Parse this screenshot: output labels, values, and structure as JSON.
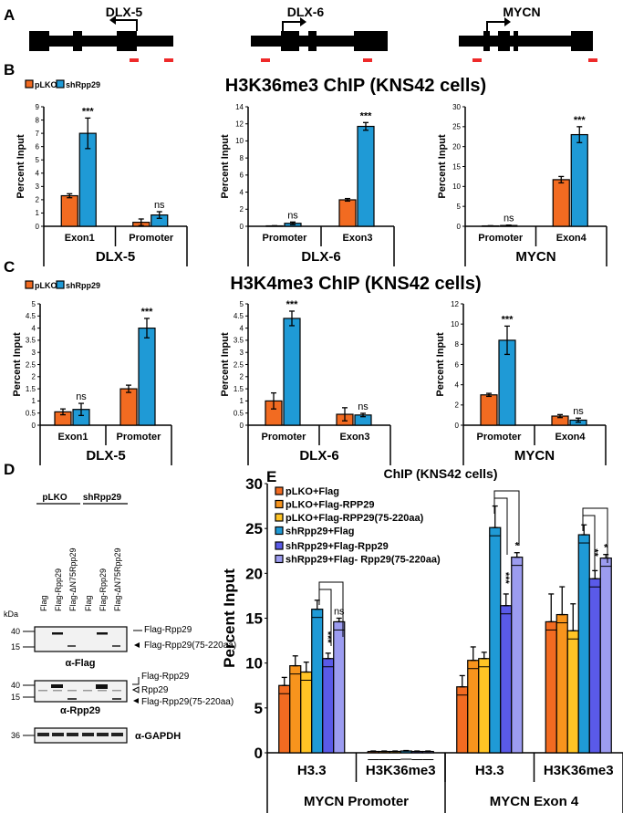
{
  "panel_labels": [
    "A",
    "B",
    "C",
    "D",
    "E"
  ],
  "genes": [
    {
      "name": "DLX-5"
    },
    {
      "name": "DLX-6"
    },
    {
      "name": "MYCN"
    }
  ],
  "panelB": {
    "title": "H3K36me3 ChIP (KNS42 cells)"
  },
  "panelC": {
    "title": "H3K4me3 ChIP (KNS42 cells)"
  },
  "legendBC": [
    {
      "name": "pLKO",
      "color": "#F26B21"
    },
    {
      "name": "shRpp29",
      "color": "#1F9AD6"
    }
  ],
  "blot": {
    "groups": [
      "pLKO",
      "shRpp29"
    ],
    "lanes": [
      "Flag",
      "Flag-Rpp29",
      "Flag-ΔN75Rpp29",
      "Flag",
      "Flag-Rpp29",
      "Flag-ΔN75Rpp29"
    ],
    "kda": "kDa",
    "flag": {
      "markers": [
        "40",
        "15"
      ],
      "caption": "α-Flag",
      "bands": [
        "Flag-Rpp29",
        "Flag-Rpp29(75-220aa)"
      ]
    },
    "rpp29": {
      "markers": [
        "40",
        "15"
      ],
      "caption": "α-Rpp29",
      "bands": [
        "Flag-Rpp29",
        "Rpp29",
        "Flag-Rpp29(75-220aa)"
      ]
    },
    "gapdh": {
      "markers": [
        "36"
      ],
      "caption": "α-GAPDH"
    }
  },
  "chart_data": [
    {
      "type": "bar",
      "panel": "B",
      "ylabel": "Percent Input",
      "ylim": [
        0,
        9
      ],
      "ystep": 1,
      "group": "DLX-5",
      "categories": [
        "Exon1",
        "Promoter"
      ],
      "series": [
        {
          "name": "pLKO",
          "values": [
            2.3,
            0.3
          ],
          "errors": [
            0.15,
            0.25
          ]
        },
        {
          "name": "shRpp29",
          "values": [
            7.0,
            0.85
          ],
          "errors": [
            1.15,
            0.25
          ]
        }
      ],
      "annotations": [
        [
          "",
          ""
        ],
        [
          "***",
          "ns"
        ]
      ]
    },
    {
      "type": "bar",
      "panel": "B",
      "ylabel": "Percent Input",
      "ylim": [
        0,
        14
      ],
      "ystep": 2,
      "group": "DLX-6",
      "categories": [
        "Promoter",
        "Exon3"
      ],
      "series": [
        {
          "name": "pLKO",
          "values": [
            0.05,
            3.1
          ],
          "errors": [
            0.02,
            0.15
          ]
        },
        {
          "name": "shRpp29",
          "values": [
            0.35,
            11.7
          ],
          "errors": [
            0.15,
            0.45
          ]
        }
      ],
      "annotations": [
        [
          "",
          ""
        ],
        [
          "ns",
          "***"
        ]
      ]
    },
    {
      "type": "bar",
      "panel": "B",
      "ylabel": "Percent Input",
      "ylim": [
        0,
        30
      ],
      "ystep": 5,
      "group": "MYCN",
      "categories": [
        "Promoter",
        "Exon4"
      ],
      "series": [
        {
          "name": "pLKO",
          "values": [
            0.1,
            11.7
          ],
          "errors": [
            0.05,
            0.8
          ]
        },
        {
          "name": "shRpp29",
          "values": [
            0.2,
            23.0
          ],
          "errors": [
            0.1,
            2.0
          ]
        }
      ],
      "annotations": [
        [
          "",
          ""
        ],
        [
          "ns",
          "***"
        ]
      ]
    },
    {
      "type": "bar",
      "panel": "C",
      "ylabel": "Percent Input",
      "ylim": [
        0,
        5
      ],
      "ystep": 0.5,
      "group": "DLX-5",
      "categories": [
        "Exon1",
        "Promoter"
      ],
      "series": [
        {
          "name": "pLKO",
          "values": [
            0.55,
            1.5
          ],
          "errors": [
            0.12,
            0.15
          ]
        },
        {
          "name": "shRpp29",
          "values": [
            0.65,
            4.0
          ],
          "errors": [
            0.25,
            0.4
          ]
        }
      ],
      "annotations": [
        [
          "",
          ""
        ],
        [
          "ns",
          "***"
        ]
      ]
    },
    {
      "type": "bar",
      "panel": "C",
      "ylabel": "Percent Input",
      "ylim": [
        0,
        5
      ],
      "ystep": 0.5,
      "group": "DLX-6",
      "categories": [
        "Promoter",
        "Exon3"
      ],
      "series": [
        {
          "name": "pLKO",
          "values": [
            1.0,
            0.45
          ],
          "errors": [
            0.33,
            0.27
          ]
        },
        {
          "name": "shRpp29",
          "values": [
            4.4,
            0.42
          ],
          "errors": [
            0.3,
            0.07
          ]
        }
      ],
      "annotations": [
        [
          "",
          ""
        ],
        [
          "***",
          "ns"
        ]
      ]
    },
    {
      "type": "bar",
      "panel": "C",
      "ylabel": "Percent Input",
      "ylim": [
        0,
        12
      ],
      "ystep": 2,
      "group": "MYCN",
      "categories": [
        "Promoter",
        "Exon4"
      ],
      "series": [
        {
          "name": "pLKO",
          "values": [
            3.0,
            0.9
          ],
          "errors": [
            0.15,
            0.15
          ]
        },
        {
          "name": "shRpp29",
          "values": [
            8.4,
            0.5
          ],
          "errors": [
            1.4,
            0.2
          ]
        }
      ],
      "annotations": [
        [
          "",
          ""
        ],
        [
          "***",
          "ns"
        ]
      ]
    },
    {
      "type": "bar",
      "panel": "E",
      "title": "ChIP (KNS42 cells)",
      "ylabel": "Percent Input",
      "ylim": [
        0,
        30
      ],
      "ystep": 5,
      "categories": [
        "H3.3",
        "H3K36me3",
        "H3.3",
        "H3K36me3"
      ],
      "groups": [
        "MYCN Promoter",
        "MYCN Exon 4"
      ],
      "series": [
        {
          "name": "pLKO+Flag",
          "color": "#F26B21",
          "values": [
            7.5,
            0.15,
            7.35,
            14.6
          ],
          "errors": [
            0.9,
            0.05,
            1.25,
            3.1
          ]
        },
        {
          "name": "pLKO+Flag-RPP29",
          "color": "#F7941D",
          "values": [
            9.7,
            0.15,
            10.3,
            15.4
          ],
          "errors": [
            1.1,
            0.05,
            1.5,
            3.1
          ]
        },
        {
          "name": "pLKO+Flag-RPP29(75-220aa)",
          "color": "#FFC425",
          "values": [
            9.0,
            0.15,
            10.5,
            13.6
          ],
          "errors": [
            1.1,
            0.05,
            0.7,
            3.0
          ]
        },
        {
          "name": "shRpp29+Flag",
          "color": "#1F9AD6",
          "values": [
            16.0,
            0.2,
            25.1,
            24.3
          ],
          "errors": [
            1.0,
            0.05,
            2.4,
            1.1
          ]
        },
        {
          "name": "shRpp29+Flag-Rpp29",
          "color": "#5A5AE8",
          "values": [
            10.5,
            0.15,
            16.4,
            19.4
          ],
          "errors": [
            0.6,
            0.05,
            1.3,
            0.9
          ]
        },
        {
          "name": "shRpp29+Flag- Rpp29(75-220aa)",
          "color": "#9C9CF0",
          "values": [
            14.6,
            0.15,
            21.8,
            21.7
          ],
          "errors": [
            0.4,
            0.05,
            0.5,
            0.4
          ]
        }
      ],
      "annotations": [
        [
          "",
          "",
          "",
          ""
        ],
        [
          "",
          "",
          "",
          ""
        ],
        [
          "",
          "",
          "",
          ""
        ],
        [
          "",
          "",
          "",
          ""
        ],
        [
          "***",
          "",
          "***",
          "**"
        ],
        [
          "ns",
          "",
          "*",
          "*"
        ]
      ]
    }
  ]
}
